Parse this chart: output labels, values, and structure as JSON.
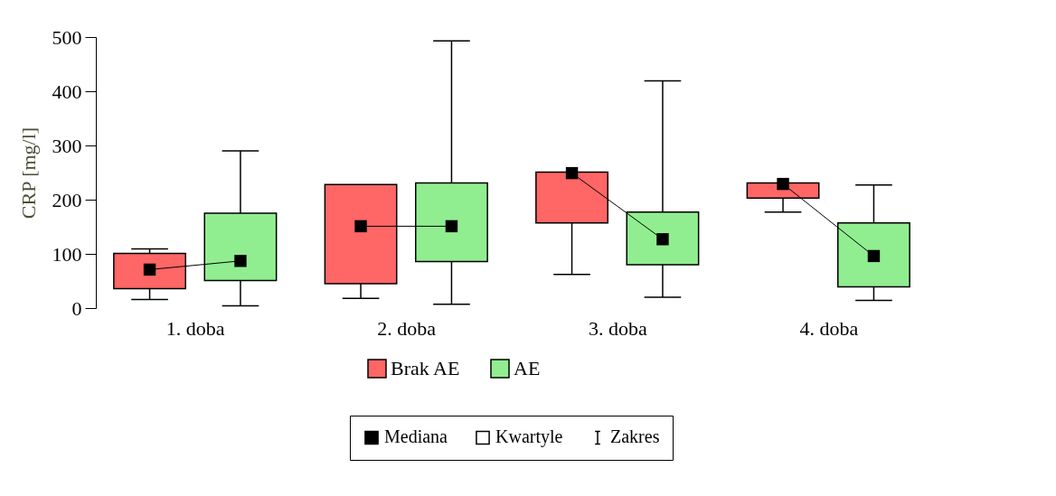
{
  "chart_data": {
    "type": "box",
    "ylabel": "CRP [mg/l]",
    "categories": [
      "1. doba",
      "2. doba",
      "3. doba",
      "4. doba"
    ],
    "series": [
      {
        "name": "Brak AE",
        "color": "#ff6666",
        "boxes": [
          {
            "low": 16,
            "q1": 36,
            "median": 71,
            "q3": 101,
            "high": 109
          },
          {
            "low": 18,
            "q1": 45,
            "median": 151,
            "q3": 228,
            "high": 228
          },
          {
            "low": 62,
            "q1": 157,
            "median": 249,
            "q3": 251,
            "high": 251
          },
          {
            "low": 177,
            "q1": 203,
            "median": 229,
            "q3": 231,
            "high": 231
          }
        ]
      },
      {
        "name": "AE",
        "color": "#90ee90",
        "boxes": [
          {
            "low": 4,
            "q1": 51,
            "median": 87,
            "q3": 175,
            "high": 290
          },
          {
            "low": 7,
            "q1": 86,
            "median": 151,
            "q3": 231,
            "high": 493
          },
          {
            "low": 20,
            "q1": 80,
            "median": 127,
            "q3": 177,
            "high": 419
          },
          {
            "low": 14,
            "q1": 39,
            "median": 96,
            "q3": 157,
            "high": 227
          }
        ]
      }
    ],
    "ylim": [
      0,
      500
    ],
    "yticks": [
      0,
      100,
      200,
      300,
      400,
      500
    ],
    "grid": false,
    "legend": "bottom",
    "annotations": [
      "Mediana",
      "Kwartyle",
      "Zakres"
    ]
  }
}
